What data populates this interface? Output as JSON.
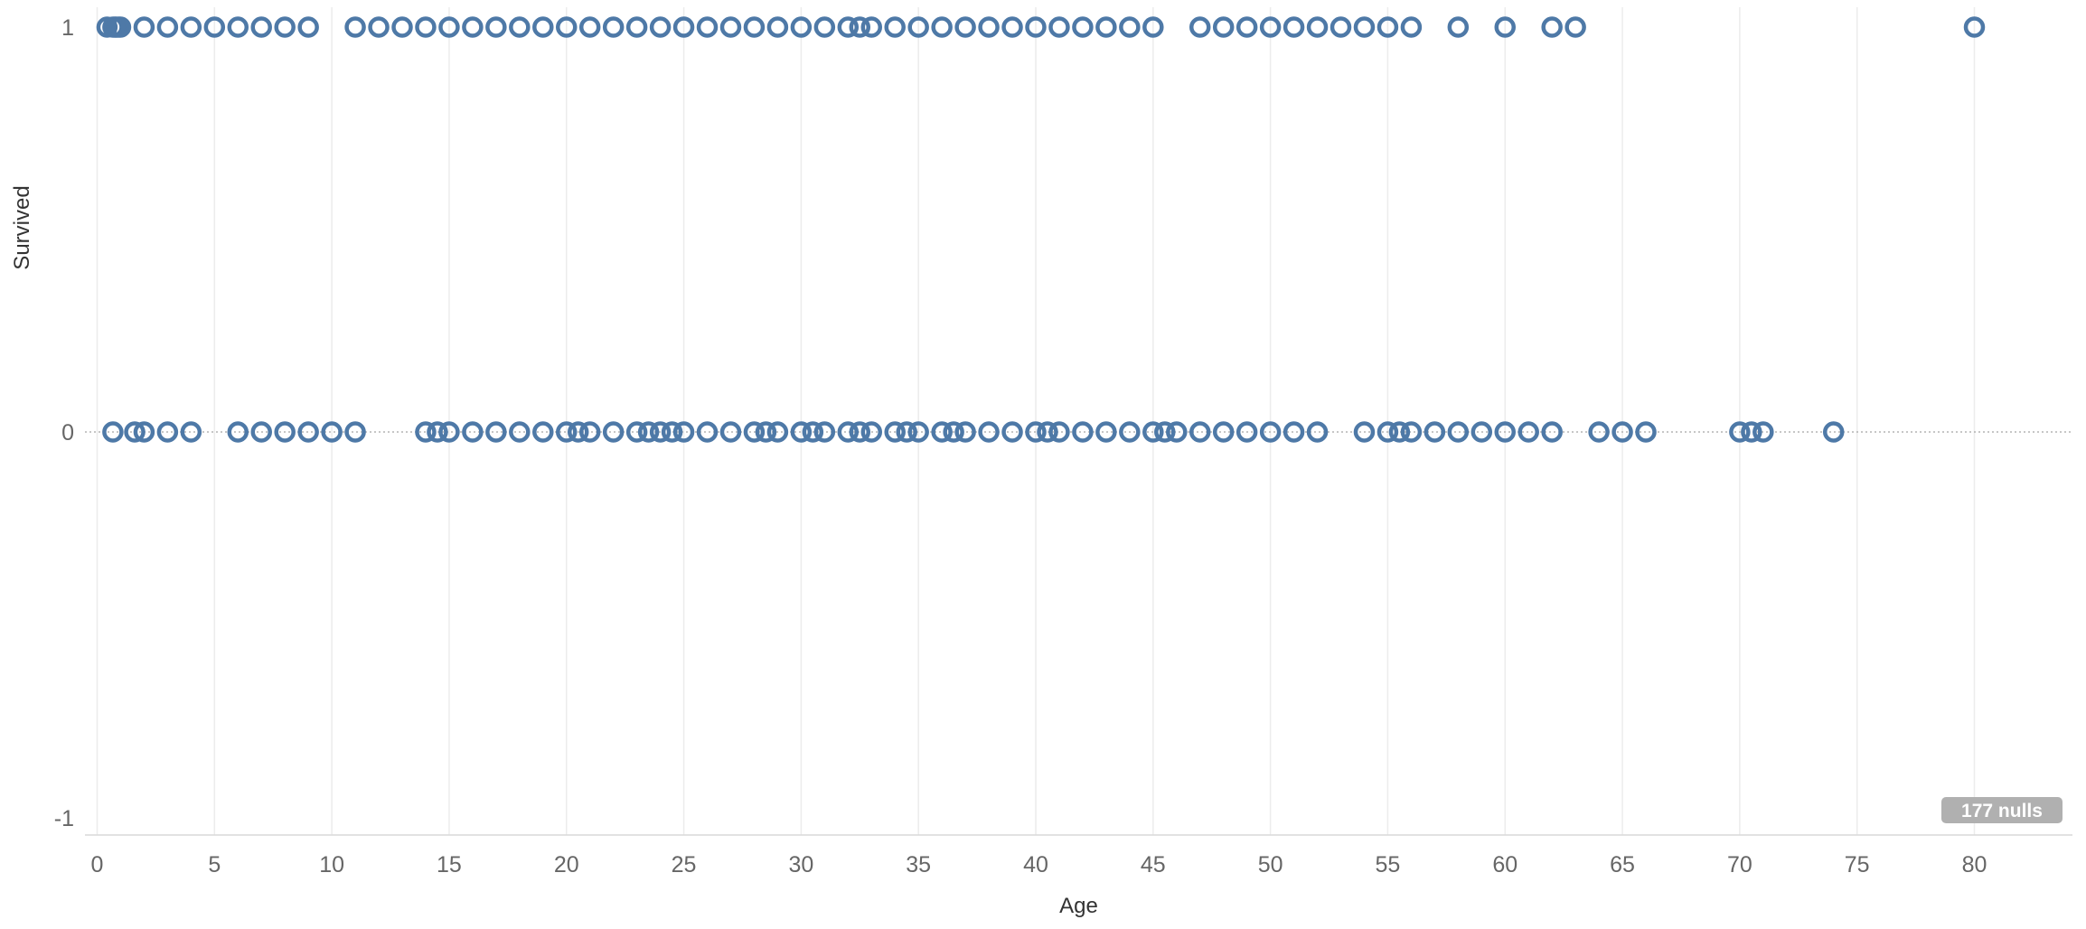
{
  "chart_data": {
    "type": "scatter",
    "xlabel": "Age",
    "ylabel": "Survived",
    "xlim": [
      -2,
      85
    ],
    "ylim": [
      -1,
      1
    ],
    "x_ticks": [
      0,
      5,
      10,
      15,
      20,
      25,
      30,
      35,
      40,
      45,
      50,
      55,
      60,
      65,
      70,
      75,
      80
    ],
    "y_ticks": [
      1,
      0,
      -1
    ],
    "grid": "vertical",
    "marker": "circle-open",
    "marker_color": "#4e79a7",
    "series": [
      {
        "values": [
          {
            "x": 0.42,
            "y": 1
          },
          {
            "x": 0.67,
            "y": 1
          },
          {
            "x": 0.75,
            "y": 1
          },
          {
            "x": 0.83,
            "y": 1
          },
          {
            "x": 0.92,
            "y": 1
          },
          {
            "x": 1,
            "y": 1
          },
          {
            "x": 2,
            "y": 1
          },
          {
            "x": 3,
            "y": 1
          },
          {
            "x": 4,
            "y": 1
          },
          {
            "x": 5,
            "y": 1
          },
          {
            "x": 6,
            "y": 1
          },
          {
            "x": 7,
            "y": 1
          },
          {
            "x": 8,
            "y": 1
          },
          {
            "x": 9,
            "y": 1
          },
          {
            "x": 11,
            "y": 1
          },
          {
            "x": 12,
            "y": 1
          },
          {
            "x": 13,
            "y": 1
          },
          {
            "x": 14,
            "y": 1
          },
          {
            "x": 15,
            "y": 1
          },
          {
            "x": 16,
            "y": 1
          },
          {
            "x": 17,
            "y": 1
          },
          {
            "x": 18,
            "y": 1
          },
          {
            "x": 19,
            "y": 1
          },
          {
            "x": 20,
            "y": 1
          },
          {
            "x": 21,
            "y": 1
          },
          {
            "x": 22,
            "y": 1
          },
          {
            "x": 23,
            "y": 1
          },
          {
            "x": 24,
            "y": 1
          },
          {
            "x": 25,
            "y": 1
          },
          {
            "x": 26,
            "y": 1
          },
          {
            "x": 27,
            "y": 1
          },
          {
            "x": 28,
            "y": 1
          },
          {
            "x": 29,
            "y": 1
          },
          {
            "x": 30,
            "y": 1
          },
          {
            "x": 31,
            "y": 1
          },
          {
            "x": 32,
            "y": 1
          },
          {
            "x": 32.5,
            "y": 1
          },
          {
            "x": 33,
            "y": 1
          },
          {
            "x": 34,
            "y": 1
          },
          {
            "x": 35,
            "y": 1
          },
          {
            "x": 36,
            "y": 1
          },
          {
            "x": 37,
            "y": 1
          },
          {
            "x": 38,
            "y": 1
          },
          {
            "x": 39,
            "y": 1
          },
          {
            "x": 40,
            "y": 1
          },
          {
            "x": 41,
            "y": 1
          },
          {
            "x": 42,
            "y": 1
          },
          {
            "x": 43,
            "y": 1
          },
          {
            "x": 44,
            "y": 1
          },
          {
            "x": 45,
            "y": 1
          },
          {
            "x": 47,
            "y": 1
          },
          {
            "x": 48,
            "y": 1
          },
          {
            "x": 49,
            "y": 1
          },
          {
            "x": 50,
            "y": 1
          },
          {
            "x": 51,
            "y": 1
          },
          {
            "x": 52,
            "y": 1
          },
          {
            "x": 53,
            "y": 1
          },
          {
            "x": 54,
            "y": 1
          },
          {
            "x": 55,
            "y": 1
          },
          {
            "x": 56,
            "y": 1
          },
          {
            "x": 58,
            "y": 1
          },
          {
            "x": 60,
            "y": 1
          },
          {
            "x": 62,
            "y": 1
          },
          {
            "x": 63,
            "y": 1
          },
          {
            "x": 80,
            "y": 1
          },
          {
            "x": 0.67,
            "y": 0
          },
          {
            "x": 1.6,
            "y": 0
          },
          {
            "x": 2,
            "y": 0
          },
          {
            "x": 3,
            "y": 0
          },
          {
            "x": 4,
            "y": 0
          },
          {
            "x": 6,
            "y": 0
          },
          {
            "x": 7,
            "y": 0
          },
          {
            "x": 8,
            "y": 0
          },
          {
            "x": 9,
            "y": 0
          },
          {
            "x": 10,
            "y": 0
          },
          {
            "x": 11,
            "y": 0
          },
          {
            "x": 14,
            "y": 0
          },
          {
            "x": 14.5,
            "y": 0
          },
          {
            "x": 15,
            "y": 0
          },
          {
            "x": 16,
            "y": 0
          },
          {
            "x": 17,
            "y": 0
          },
          {
            "x": 18,
            "y": 0
          },
          {
            "x": 19,
            "y": 0
          },
          {
            "x": 20,
            "y": 0
          },
          {
            "x": 20.5,
            "y": 0
          },
          {
            "x": 21,
            "y": 0
          },
          {
            "x": 22,
            "y": 0
          },
          {
            "x": 23,
            "y": 0
          },
          {
            "x": 23.5,
            "y": 0
          },
          {
            "x": 24,
            "y": 0
          },
          {
            "x": 24.5,
            "y": 0
          },
          {
            "x": 25,
            "y": 0
          },
          {
            "x": 26,
            "y": 0
          },
          {
            "x": 27,
            "y": 0
          },
          {
            "x": 28,
            "y": 0
          },
          {
            "x": 28.5,
            "y": 0
          },
          {
            "x": 29,
            "y": 0
          },
          {
            "x": 30,
            "y": 0
          },
          {
            "x": 30.5,
            "y": 0
          },
          {
            "x": 31,
            "y": 0
          },
          {
            "x": 32,
            "y": 0
          },
          {
            "x": 32.5,
            "y": 0
          },
          {
            "x": 33,
            "y": 0
          },
          {
            "x": 34,
            "y": 0
          },
          {
            "x": 34.5,
            "y": 0
          },
          {
            "x": 35,
            "y": 0
          },
          {
            "x": 36,
            "y": 0
          },
          {
            "x": 36.5,
            "y": 0
          },
          {
            "x": 37,
            "y": 0
          },
          {
            "x": 38,
            "y": 0
          },
          {
            "x": 39,
            "y": 0
          },
          {
            "x": 40,
            "y": 0
          },
          {
            "x": 40.5,
            "y": 0
          },
          {
            "x": 41,
            "y": 0
          },
          {
            "x": 42,
            "y": 0
          },
          {
            "x": 43,
            "y": 0
          },
          {
            "x": 44,
            "y": 0
          },
          {
            "x": 45,
            "y": 0
          },
          {
            "x": 45.5,
            "y": 0
          },
          {
            "x": 46,
            "y": 0
          },
          {
            "x": 47,
            "y": 0
          },
          {
            "x": 48,
            "y": 0
          },
          {
            "x": 49,
            "y": 0
          },
          {
            "x": 50,
            "y": 0
          },
          {
            "x": 51,
            "y": 0
          },
          {
            "x": 52,
            "y": 0
          },
          {
            "x": 54,
            "y": 0
          },
          {
            "x": 55,
            "y": 0
          },
          {
            "x": 55.5,
            "y": 0
          },
          {
            "x": 56,
            "y": 0
          },
          {
            "x": 57,
            "y": 0
          },
          {
            "x": 58,
            "y": 0
          },
          {
            "x": 59,
            "y": 0
          },
          {
            "x": 60,
            "y": 0
          },
          {
            "x": 61,
            "y": 0
          },
          {
            "x": 62,
            "y": 0
          },
          {
            "x": 64,
            "y": 0
          },
          {
            "x": 65,
            "y": 0
          },
          {
            "x": 66,
            "y": 0
          },
          {
            "x": 70,
            "y": 0
          },
          {
            "x": 70.5,
            "y": 0
          },
          {
            "x": 71,
            "y": 0
          },
          {
            "x": 74,
            "y": 0
          }
        ]
      }
    ],
    "null_indicator": "177 nulls"
  }
}
